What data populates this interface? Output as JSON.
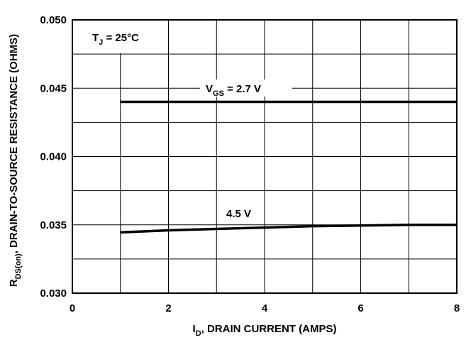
{
  "chart_data": {
    "type": "line",
    "xlabel": {
      "main": "I",
      "sub": "D",
      "rest": ", DRAIN CURRENT (AMPS)"
    },
    "ylabel": {
      "main": "R",
      "sub": "DS(on)",
      "rest": ", DRAIN-TO-SOURCE RESISTANCE (OHMS)"
    },
    "xlim": [
      0,
      8
    ],
    "ylim": [
      0.03,
      0.05
    ],
    "x_ticks": [
      "0",
      "2",
      "4",
      "6",
      "8"
    ],
    "y_ticks": [
      "0.030",
      "0.035",
      "0.040",
      "0.045",
      "0.050"
    ],
    "grid": true,
    "condition": {
      "main": "T",
      "sub": "J",
      "rest": " = 25°C"
    },
    "series": [
      {
        "name": "V_GS = 2.7 V",
        "x": [
          1,
          2,
          3,
          4,
          5,
          6,
          7,
          8
        ],
        "y": [
          0.044,
          0.044,
          0.044,
          0.044,
          0.044,
          0.044,
          0.044,
          0.044
        ]
      },
      {
        "name": "4.5 V",
        "x": [
          1,
          2,
          3,
          3.5,
          4,
          5,
          6,
          7,
          8
        ],
        "y": [
          0.03445,
          0.0346,
          0.0347,
          0.03475,
          0.0348,
          0.0349,
          0.03495,
          0.035,
          0.035
        ]
      }
    ],
    "labels": {
      "vgs": {
        "main": "V",
        "sub": "GS",
        "rest": " = 2.7 V"
      },
      "v45": "4.5 V"
    }
  }
}
